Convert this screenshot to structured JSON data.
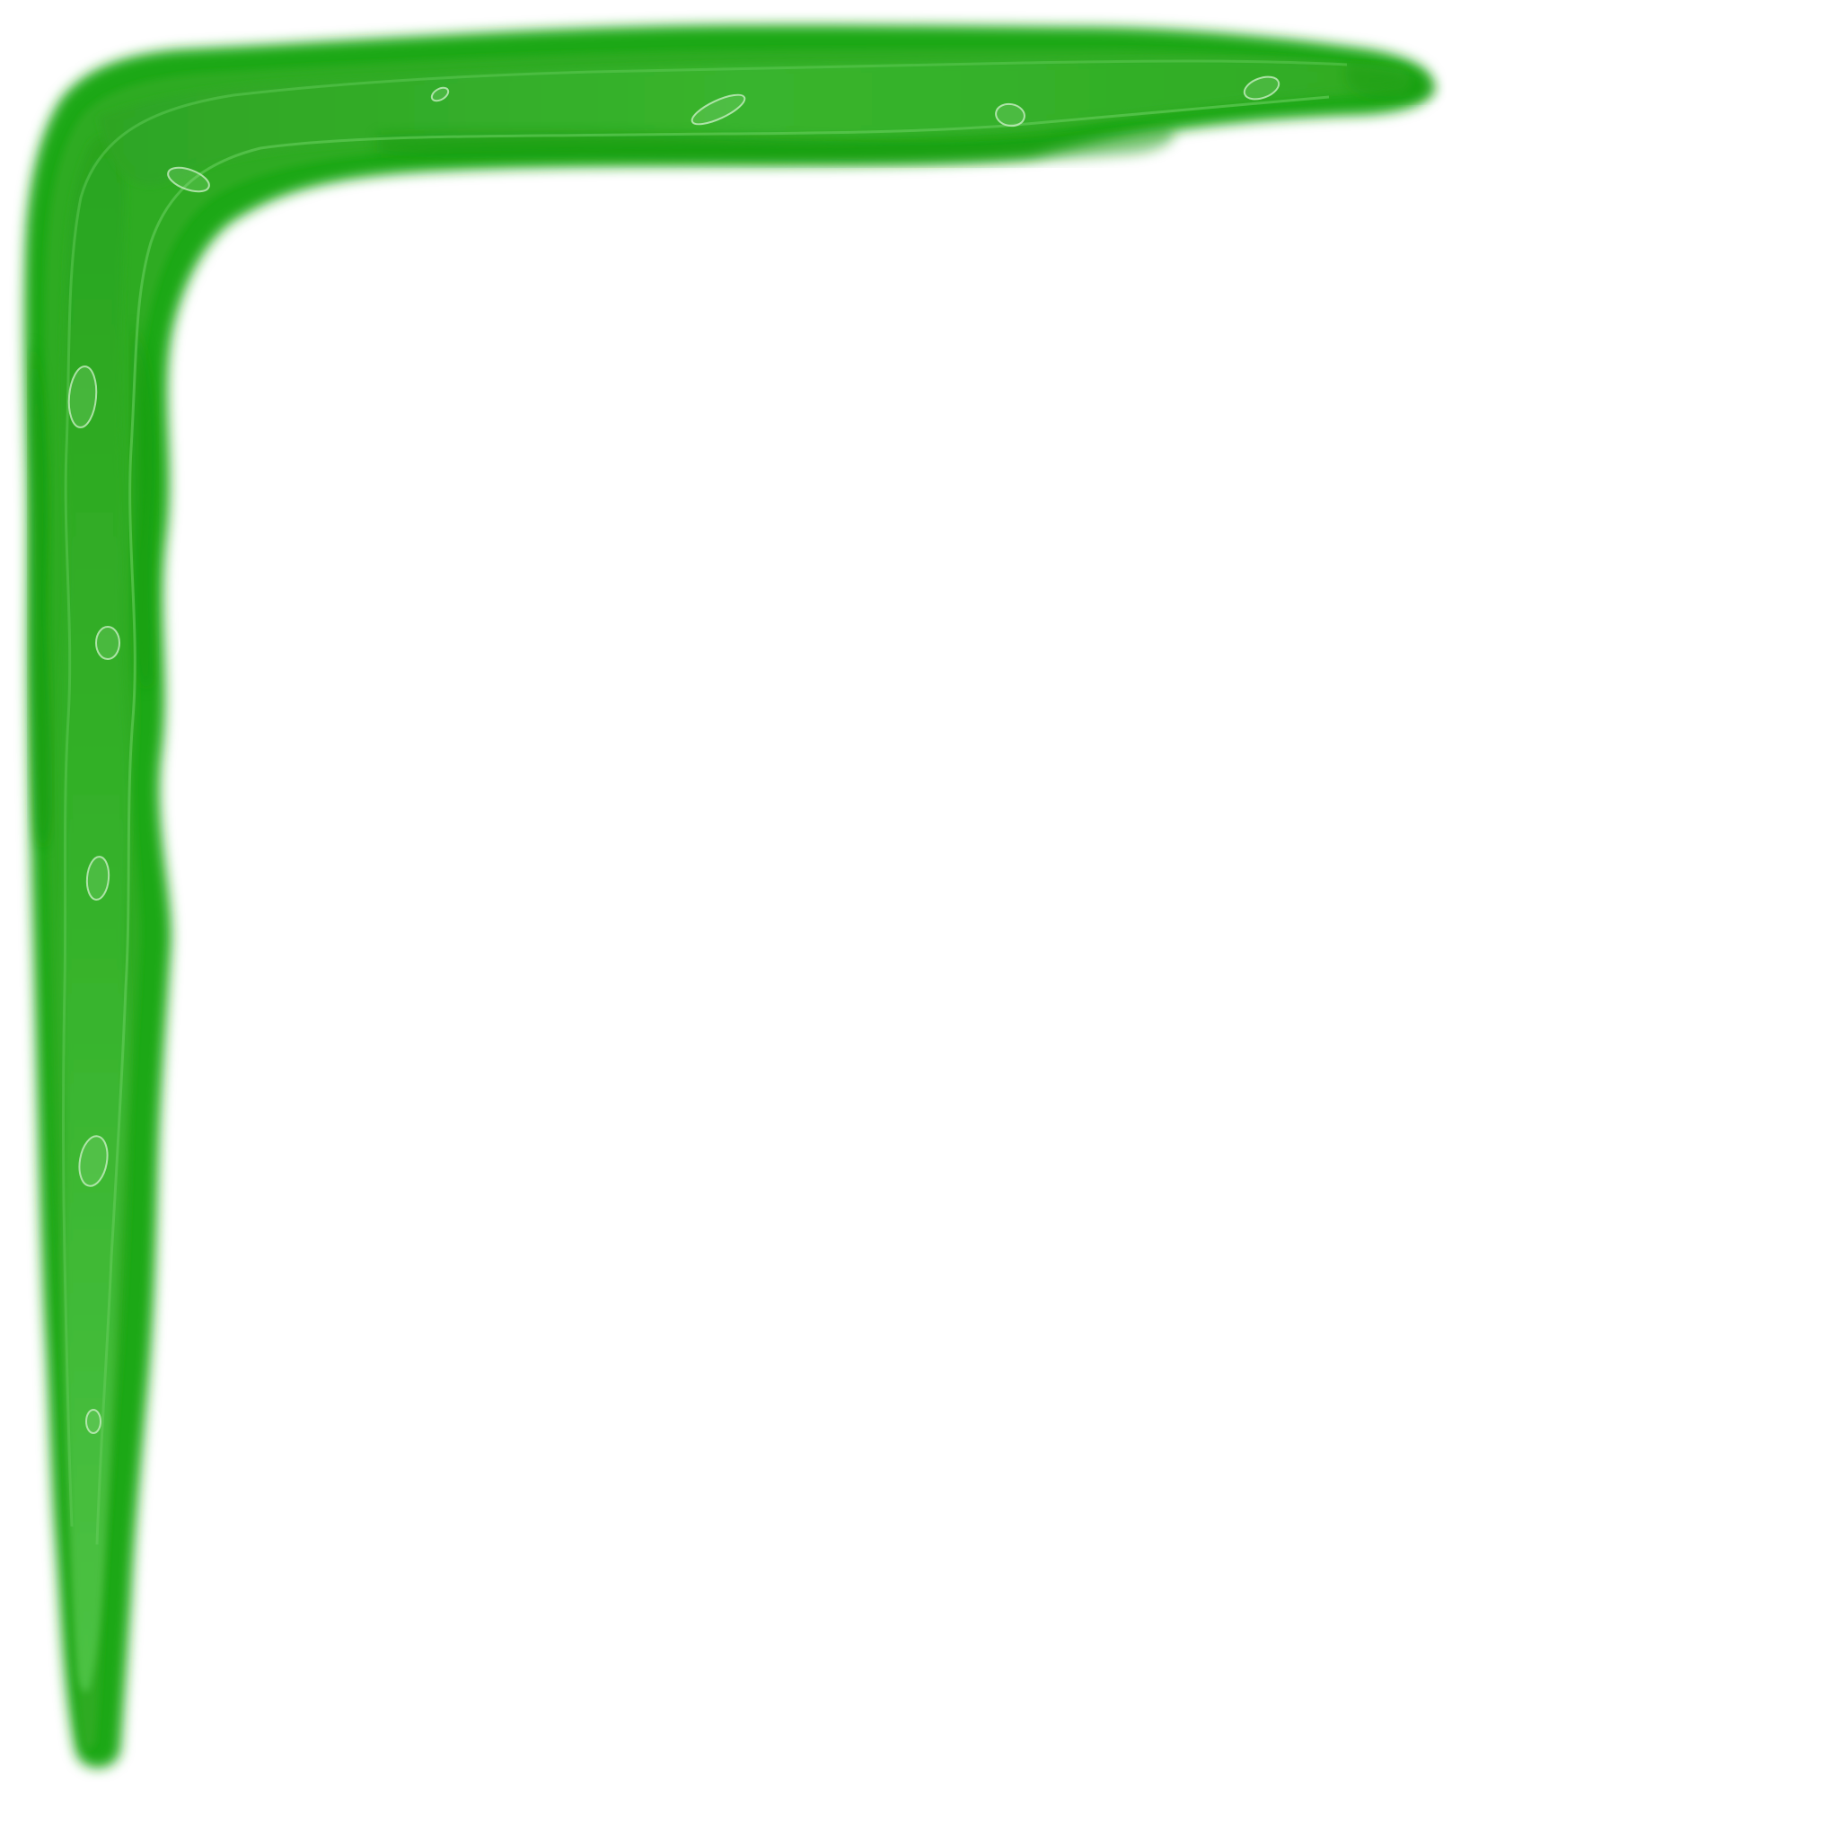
{
  "artwork": {
    "subject": "green-corner-border",
    "corner": "top-left",
    "colors": {
      "background": "#ffffff",
      "stroke_dark": "#17a30c",
      "stroke_mid": "#2aaa20",
      "stroke_light": "#47bf3c",
      "highlight": "#8fdc86"
    },
    "spot_count": 11
  }
}
